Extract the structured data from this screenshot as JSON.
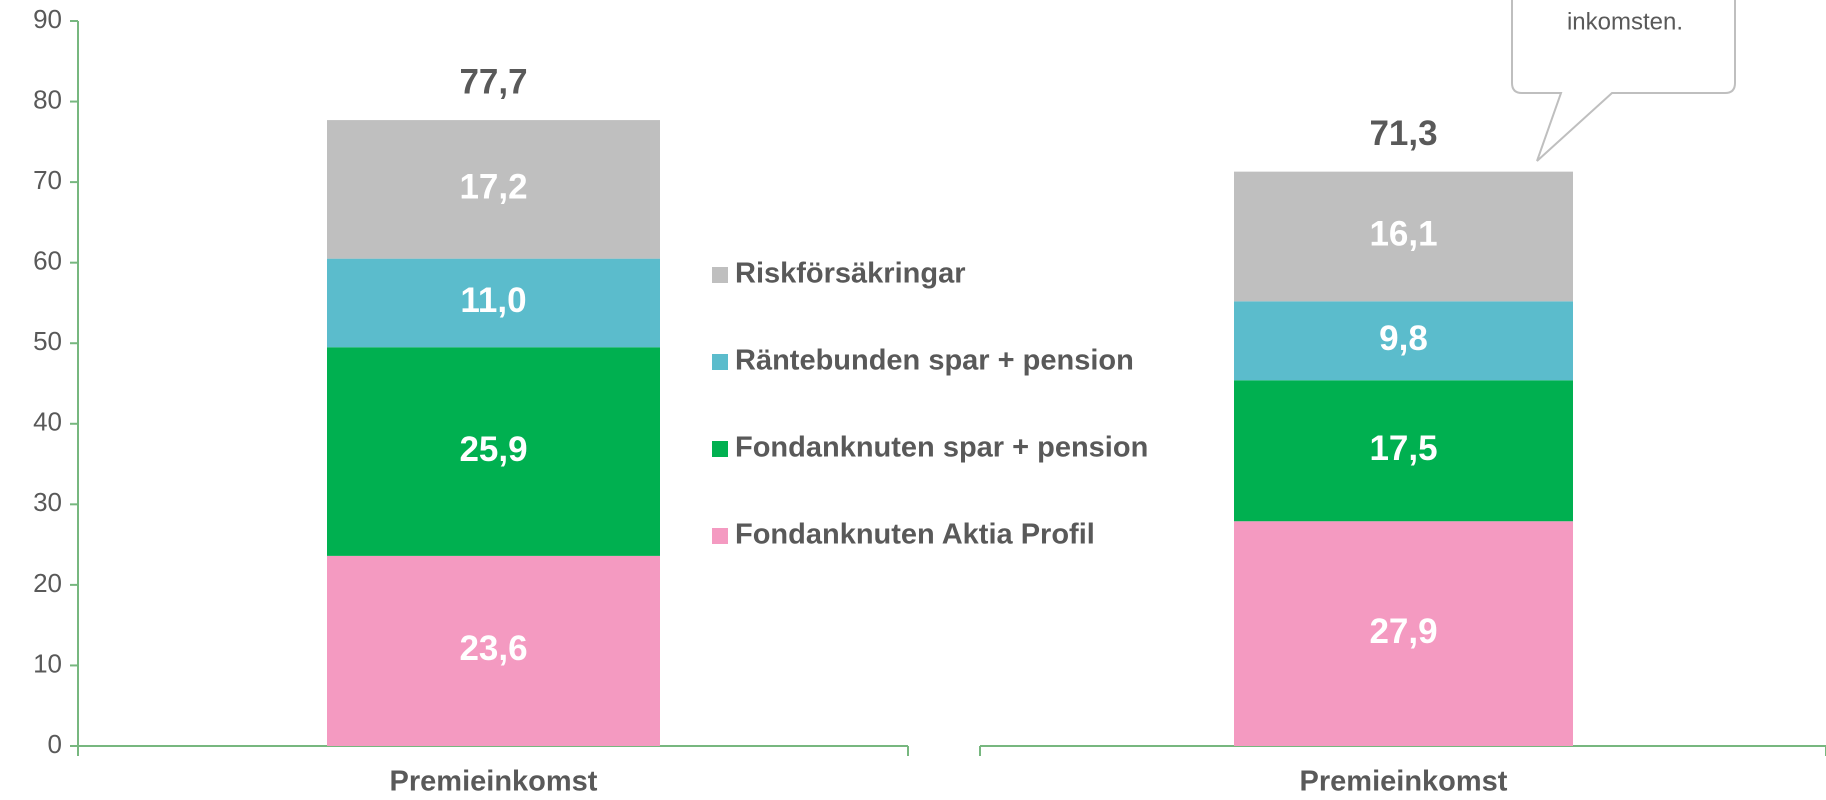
{
  "chart_data": {
    "type": "stacked_bar",
    "categories": [
      "Premieinkomst",
      "Premieinkomst"
    ],
    "series": [
      {
        "name": "Fondanknuten Aktia Profil",
        "color": "#f49ac1",
        "values": [
          23.6,
          27.9
        ],
        "value_labels": [
          "23,6",
          "27,9"
        ]
      },
      {
        "name": "Fondanknuten spar + pension",
        "color": "#00b050",
        "values": [
          25.9,
          17.5
        ],
        "value_labels": [
          "25,9",
          "17,5"
        ]
      },
      {
        "name": "Räntebunden spar + pension",
        "color": "#5bbccc",
        "values": [
          11.0,
          9.8
        ],
        "value_labels": [
          "11,0",
          "9,8"
        ]
      },
      {
        "name": "Riskförsäkringar",
        "color": "#bfbfbf",
        "values": [
          17.2,
          16.1
        ],
        "value_labels": [
          "17,2",
          "16,1"
        ]
      }
    ],
    "totals": [
      77.7,
      71.3
    ],
    "total_labels": [
      "77,7",
      "71,3"
    ],
    "annotation": "inkomsten.",
    "ylim": [
      0,
      90
    ],
    "yticks": [
      0,
      10,
      20,
      30,
      40,
      50,
      60,
      70,
      80,
      90
    ]
  }
}
